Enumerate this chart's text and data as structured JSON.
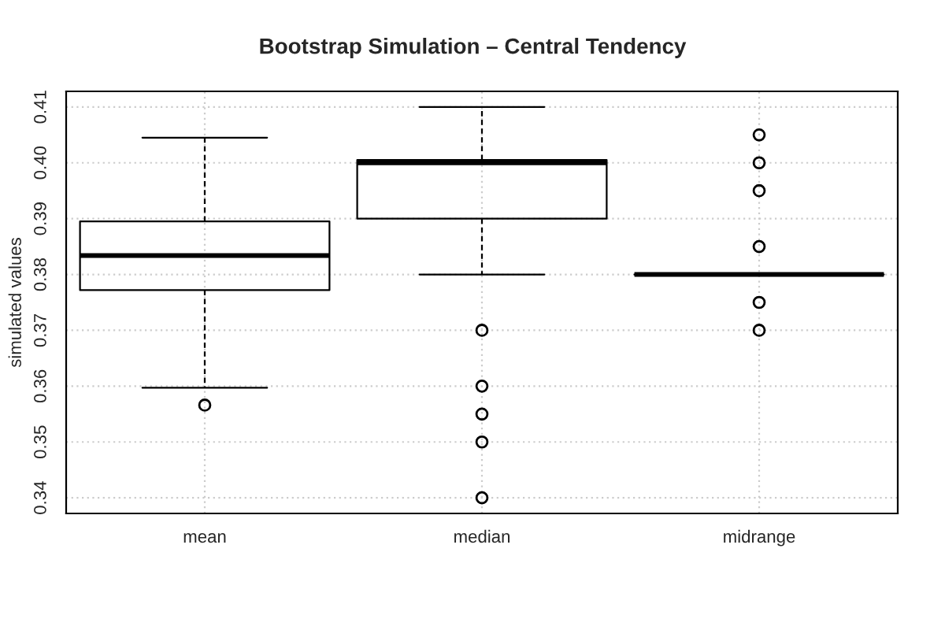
{
  "chart_data": {
    "type": "box",
    "title": "Bootstrap Simulation – Central Tendency",
    "ylabel": "simulated values",
    "categories": [
      "mean",
      "median",
      "midrange"
    ],
    "boxes": [
      {
        "low": 0.3597,
        "q1": 0.3772,
        "median": 0.3834,
        "q3": 0.3895,
        "high": 0.4045,
        "outliers": [
          0.3566
        ]
      },
      {
        "low": 0.38,
        "q1": 0.39,
        "median": 0.4,
        "q3": 0.4005,
        "high": 0.41,
        "outliers": [
          0.37,
          0.36,
          0.355,
          0.35,
          0.34
        ]
      },
      {
        "low": 0.38,
        "q1": 0.38,
        "median": 0.38,
        "q3": 0.38,
        "high": 0.38,
        "outliers": [
          0.405,
          0.4,
          0.395,
          0.385,
          0.375,
          0.37
        ]
      }
    ],
    "ylim": [
      0.3372,
      0.4128
    ],
    "yticks": [
      0.34,
      0.35,
      0.36,
      0.37,
      0.38,
      0.39,
      {
        "value": 0.4,
        "label": "0.40"
      },
      0.41
    ],
    "grid": true
  }
}
